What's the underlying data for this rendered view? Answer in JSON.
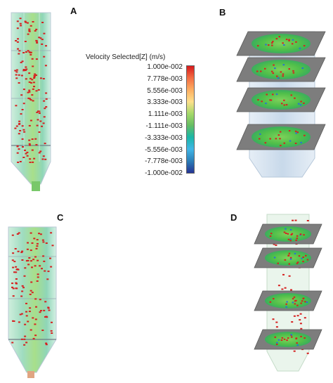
{
  "panels": {
    "a": {
      "label": "A"
    },
    "b": {
      "label": "B"
    },
    "c": {
      "label": "C"
    },
    "d": {
      "label": "D"
    }
  },
  "legend": {
    "title": "Velocity Selected[Z] (m/s)",
    "ticks": [
      "1.000e-002",
      "7.778e-003",
      "5.556e-003",
      "3.333e-003",
      "1.111e-003",
      "-1.111e-003",
      "-3.333e-003",
      "-5.556e-003",
      "-7.778e-003",
      "-1.000e-002"
    ],
    "colors": [
      "#d7191c",
      "#f46d43",
      "#fdae61",
      "#fee08b",
      "#a6d96a",
      "#66bd63",
      "#1ab7a8",
      "#41b6e6",
      "#2c7fb8",
      "#253494"
    ]
  },
  "colors": {
    "column_fill": "#b7e3c8",
    "plane_gray": "#7d7d7d",
    "plane_green": "#4fbf4a",
    "particle": "#d62020",
    "cylinder_fill": "#d7e4ef"
  }
}
